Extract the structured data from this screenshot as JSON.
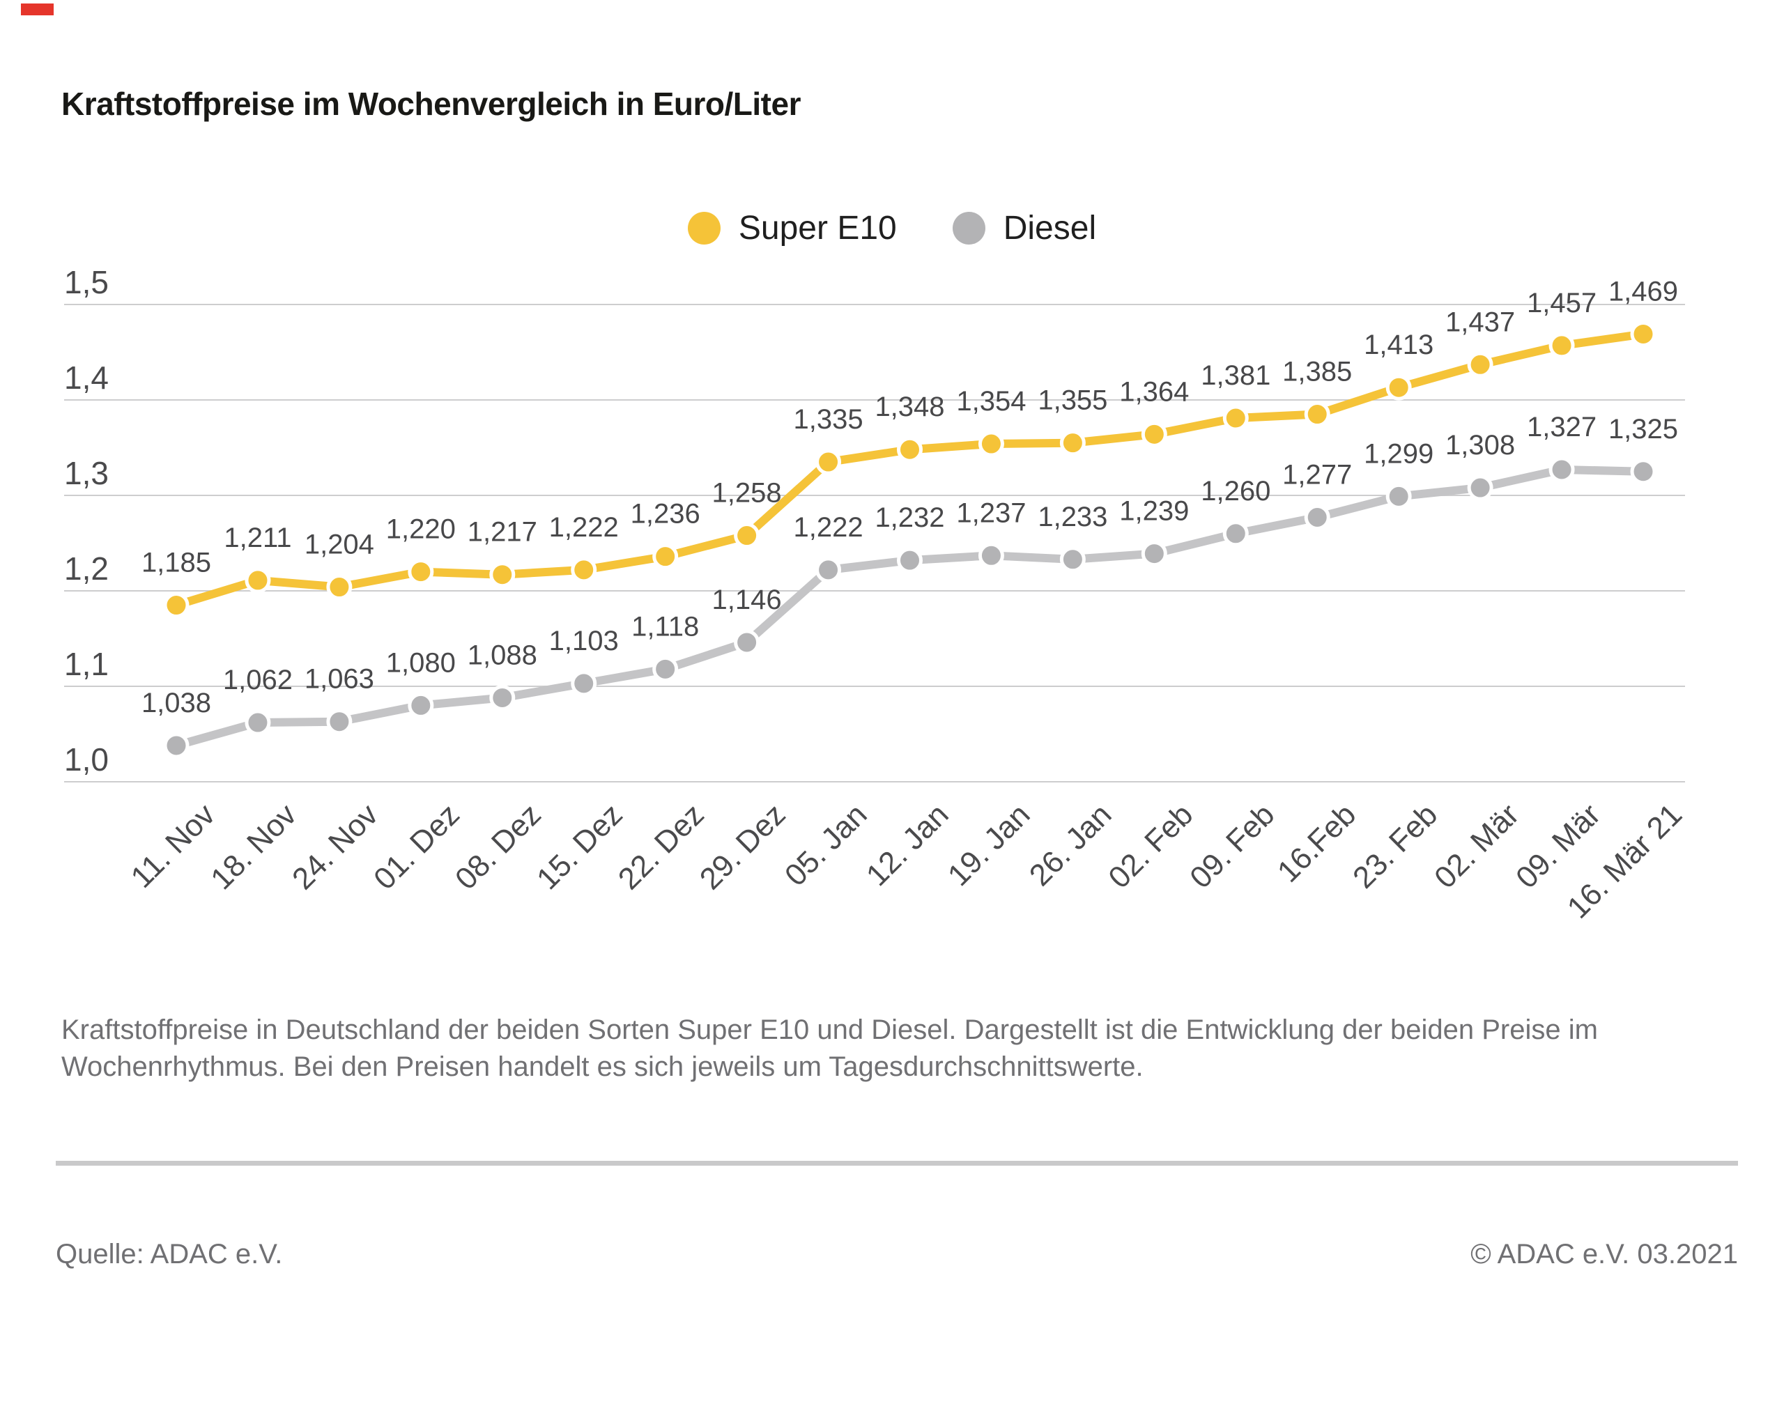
{
  "page": {
    "title": "Kraftstoffpreise im Wochenvergleich in Euro/Liter",
    "caption_line1": "Kraftstoffpreise in Deutschland der beiden Sorten Super E10 und Diesel. Dargestellt ist die Entwicklung der beiden Preise im",
    "caption_line2": "Wochenrhythmus. Bei den Preisen handelt es sich jeweils um Tagesdurchschnittswerte.",
    "source_left": "Quelle: ADAC e.V.",
    "source_right": "© ADAC e.V. 03.2021",
    "accent_red": "#e5352b"
  },
  "chart_data": {
    "type": "line",
    "title": "Kraftstoffpreise im Wochenvergleich in Euro/Liter",
    "xlabel": "",
    "ylabel": "Euro/Liter",
    "ylim": [
      1.0,
      1.5
    ],
    "grid": true,
    "legend_position": "top-center",
    "y_ticks": [
      "1,5",
      "1,4",
      "1,3",
      "1,2",
      "1,1",
      "1,0"
    ],
    "x": [
      "11. Nov",
      "18. Nov",
      "24. Nov",
      "01. Dez",
      "08. Dez",
      "15. Dez",
      "22. Dez",
      "29. Dez",
      "05. Jan",
      "12. Jan",
      "19. Jan",
      "26. Jan",
      "02. Feb",
      "09. Feb",
      "16.Feb",
      "23. Feb",
      "02. Mär",
      "09. Mär",
      "16. Mär 21"
    ],
    "series": [
      {
        "name": "Super E10",
        "line_color": "#F5C338",
        "dot_color": "#F5C338",
        "values": [
          1.185,
          1.211,
          1.204,
          1.22,
          1.217,
          1.222,
          1.236,
          1.258,
          1.335,
          1.348,
          1.354,
          1.355,
          1.364,
          1.381,
          1.385,
          1.413,
          1.437,
          1.457,
          1.469
        ],
        "labels": [
          "1,185",
          "1,211",
          "1,204",
          "1,220",
          "1,217",
          "1,222",
          "1,236",
          "1,258",
          "1,335",
          "1,348",
          "1,354",
          "1,355",
          "1,364",
          "1,381",
          "1,385",
          "1,413",
          "1,437",
          "1,457",
          "1,469"
        ]
      },
      {
        "name": "Diesel",
        "line_color": "#C4C4C6",
        "dot_color": "#B3B3B5",
        "values": [
          1.038,
          1.062,
          1.063,
          1.08,
          1.088,
          1.103,
          1.118,
          1.146,
          1.222,
          1.232,
          1.237,
          1.233,
          1.239,
          1.26,
          1.277,
          1.299,
          1.308,
          1.327,
          1.325
        ],
        "labels": [
          "1,038",
          "1,062",
          "1,063",
          "1,080",
          "1,088",
          "1,103",
          "1,118",
          "1,146",
          "1,222",
          "1,232",
          "1,237",
          "1,233",
          "1,239",
          "1,260",
          "1,277",
          "1,299",
          "1,308",
          "1,327",
          "1,325"
        ]
      }
    ]
  }
}
